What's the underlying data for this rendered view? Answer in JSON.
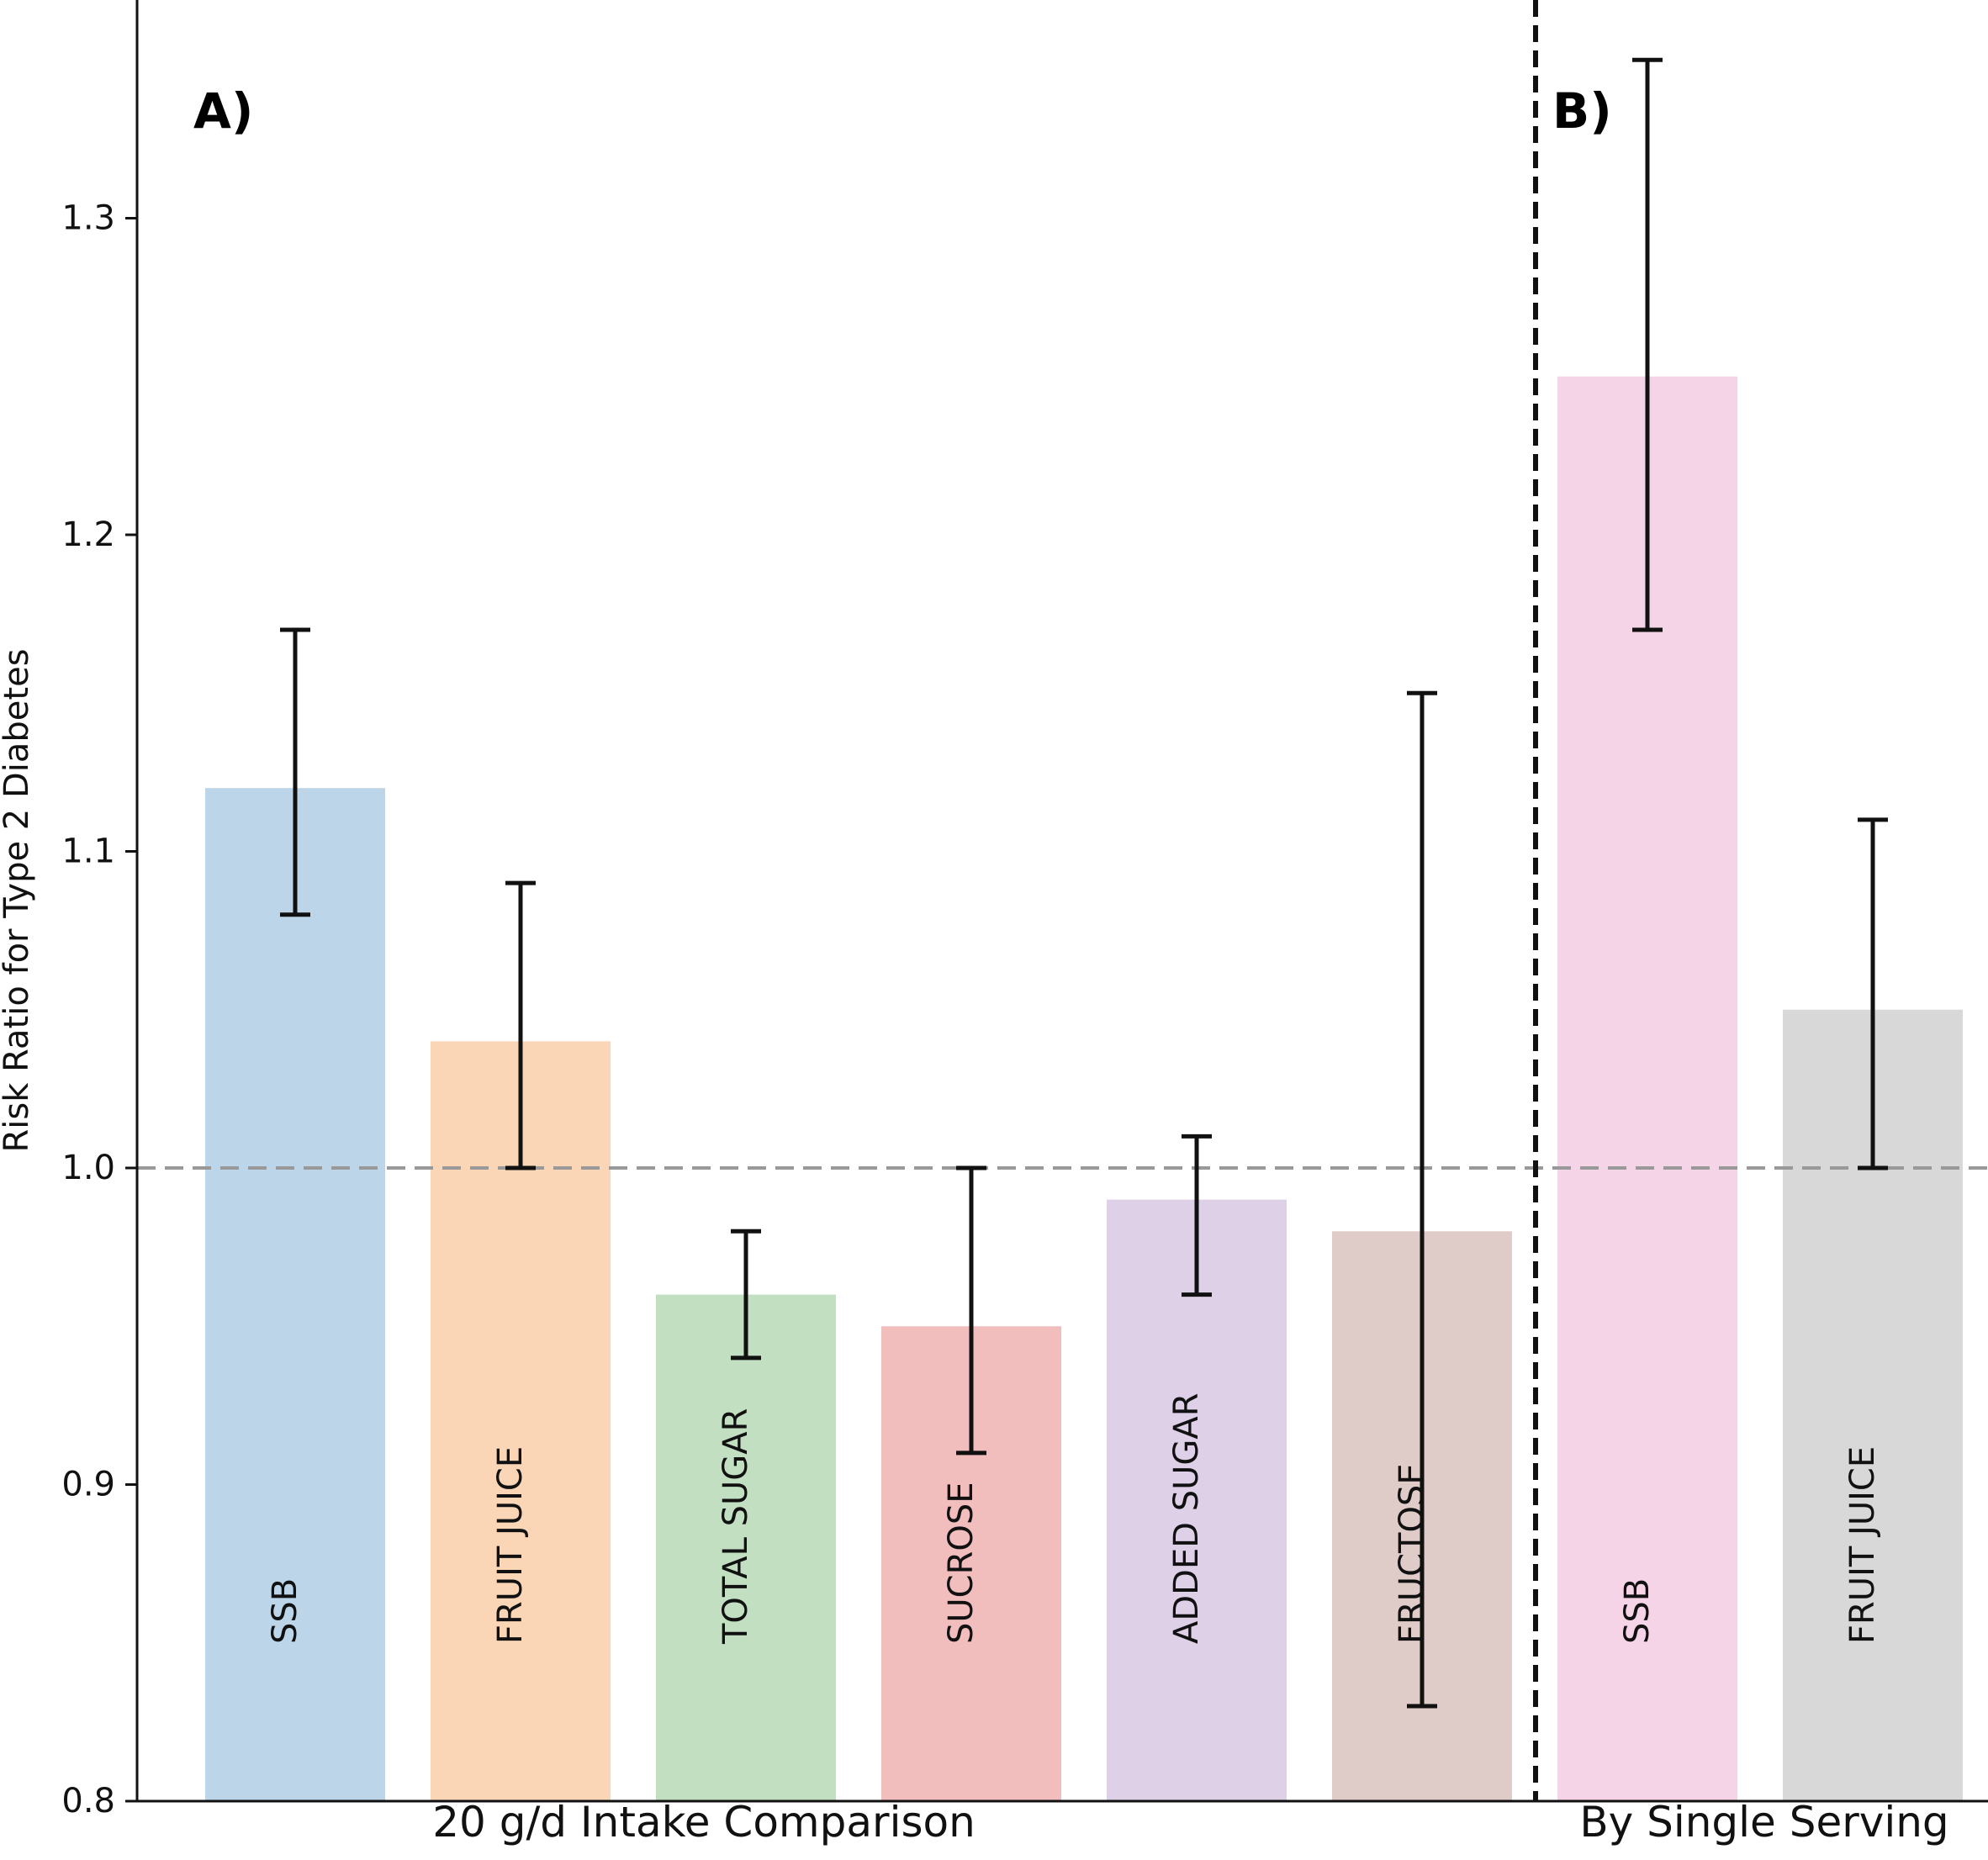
{
  "chart_data": {
    "type": "bar",
    "title": "",
    "ylabel": "Risk Ratio for Type 2 Diabetes",
    "ylim": [
      0.8,
      1.3
    ],
    "yticks": [
      "0.8",
      "0.9",
      "1.0",
      "1.1",
      "1.2",
      "1.3"
    ],
    "reference_line": {
      "value": 1.0,
      "style": "dashed",
      "color": "#999999"
    },
    "panels": [
      {
        "label": "A)",
        "xlabel": "20 g/d Intake Comparison",
        "bars": [
          {
            "label": "SSB",
            "value": 1.12,
            "ci_low": 1.08,
            "ci_high": 1.17,
            "color": "#bcd5e8"
          },
          {
            "label": "FRUIT JUICE",
            "value": 1.04,
            "ci_low": 1.0,
            "ci_high": 1.09,
            "color": "#fad6b6"
          },
          {
            "label": "TOTAL SUGAR",
            "value": 0.96,
            "ci_low": 0.94,
            "ci_high": 0.98,
            "color": "#c2dfc2"
          },
          {
            "label": "SUCROSE",
            "value": 0.95,
            "ci_low": 0.91,
            "ci_high": 1.0,
            "color": "#f1bdbd"
          },
          {
            "label": "ADDED SUGAR",
            "value": 0.99,
            "ci_low": 0.96,
            "ci_high": 1.01,
            "color": "#ddd0e7"
          },
          {
            "label": "FRUCTOSE",
            "value": 0.98,
            "ci_low": 0.83,
            "ci_high": 1.15,
            "color": "#dfccc8"
          }
        ]
      },
      {
        "label": "B)",
        "xlabel": "By Single Serving",
        "bars": [
          {
            "label": "SSB",
            "value": 1.25,
            "ci_low": 1.17,
            "ci_high": 1.35,
            "color": "#f5d4e8"
          },
          {
            "label": "FRUIT JUICE",
            "value": 1.05,
            "ci_low": 1.0,
            "ci_high": 1.11,
            "color": "#d8d8d9"
          }
        ]
      }
    ]
  }
}
